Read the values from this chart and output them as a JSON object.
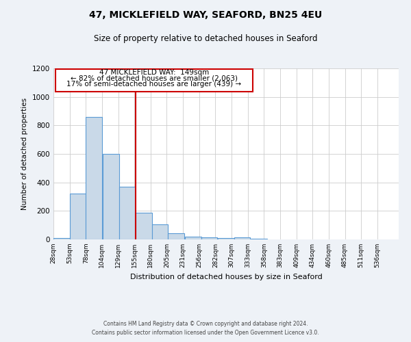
{
  "title": "47, MICKLEFIELD WAY, SEAFORD, BN25 4EU",
  "subtitle": "Size of property relative to detached houses in Seaford",
  "xlabel": "Distribution of detached houses by size in Seaford",
  "ylabel": "Number of detached properties",
  "bar_left_edges": [
    28,
    53,
    78,
    104,
    129,
    155,
    180,
    205,
    231,
    256,
    282,
    307,
    333,
    358,
    383,
    409,
    434,
    460,
    485,
    511
  ],
  "bar_heights": [
    10,
    320,
    860,
    600,
    370,
    185,
    105,
    45,
    20,
    15,
    12,
    15,
    5,
    0,
    0,
    0,
    0,
    0,
    0,
    0
  ],
  "bin_width": 25,
  "bar_color": "#c9d9e8",
  "bar_edge_color": "#5b9bd5",
  "grid_color": "#cccccc",
  "vline_x": 155,
  "vline_color": "#cc0000",
  "annotation_box_color": "#cc0000",
  "annotation_text_line1": "47 MICKLEFIELD WAY:  149sqm",
  "annotation_text_line2": "← 82% of detached houses are smaller (2,063)",
  "annotation_text_line3": "17% of semi-detached houses are larger (439) →",
  "tick_labels": [
    "28sqm",
    "53sqm",
    "78sqm",
    "104sqm",
    "129sqm",
    "155sqm",
    "180sqm",
    "205sqm",
    "231sqm",
    "256sqm",
    "282sqm",
    "307sqm",
    "333sqm",
    "358sqm",
    "383sqm",
    "409sqm",
    "434sqm",
    "460sqm",
    "485sqm",
    "511sqm",
    "536sqm"
  ],
  "ylim": [
    0,
    1200
  ],
  "yticks": [
    0,
    200,
    400,
    600,
    800,
    1000,
    1200
  ],
  "footer_line1": "Contains HM Land Registry data © Crown copyright and database right 2024.",
  "footer_line2": "Contains public sector information licensed under the Open Government Licence v3.0.",
  "bg_color": "#eef2f7",
  "plot_bg_color": "#ffffff"
}
